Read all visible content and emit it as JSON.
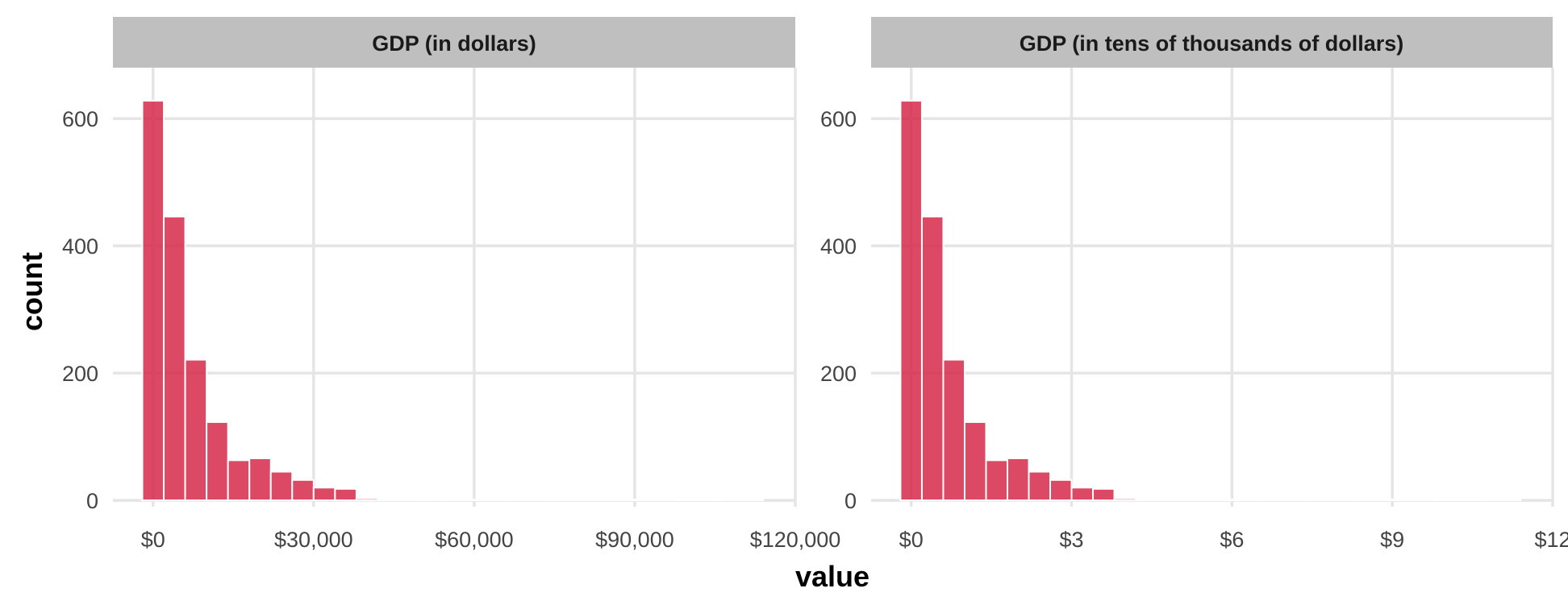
{
  "chart_data": {
    "type": "bar",
    "xlabel": "value",
    "ylabel": "count",
    "grid": true,
    "colors": {
      "bar": "#d6294a",
      "strip": "#bfbfbf",
      "grid": "#e5e5e5"
    },
    "y_ticks": [
      "0",
      "200",
      "400",
      "600"
    ],
    "panels": [
      {
        "title": "GDP (in dollars)",
        "bin_width": 4000,
        "xlim": [
          -7500,
          120000
        ],
        "ylim": [
          -10,
          680
        ],
        "x_ticks": [
          {
            "value": 0,
            "label": "$0"
          },
          {
            "value": 30000,
            "label": "$30,000"
          },
          {
            "value": 60000,
            "label": "$60,000"
          },
          {
            "value": 90000,
            "label": "$90,000"
          },
          {
            "value": 120000,
            "label": "$120,000"
          }
        ],
        "x": [
          0,
          4000,
          8000,
          12000,
          16000,
          20000,
          24000,
          28000,
          32000,
          36000,
          40000,
          44000,
          48000,
          52000,
          56000,
          60000,
          64000,
          68000,
          72000,
          76000,
          80000,
          84000,
          88000,
          92000,
          96000,
          100000,
          104000,
          108000,
          112000
        ],
        "values": [
          628,
          446,
          221,
          123,
          63,
          66,
          45,
          32,
          20,
          18,
          3,
          1,
          1,
          1,
          1,
          1,
          1,
          1,
          1,
          1,
          1,
          1,
          1,
          1,
          1,
          2,
          2,
          1,
          1
        ]
      },
      {
        "title": "GDP (in tens of thousands of dollars)",
        "bin_width": 0.4,
        "xlim": [
          -0.75,
          12
        ],
        "ylim": [
          -10,
          680
        ],
        "x_ticks": [
          {
            "value": 0,
            "label": "$0"
          },
          {
            "value": 3,
            "label": "$3"
          },
          {
            "value": 6,
            "label": "$6"
          },
          {
            "value": 9,
            "label": "$9"
          },
          {
            "value": 12,
            "label": "$12"
          }
        ],
        "x": [
          0,
          0.4,
          0.8,
          1.2,
          1.6,
          2.0,
          2.4,
          2.8,
          3.2,
          3.6,
          4.0,
          4.4,
          4.8,
          5.2,
          5.6,
          6.0,
          6.4,
          6.8,
          7.2,
          7.6,
          8.0,
          8.4,
          8.8,
          9.2,
          9.6,
          10.0,
          10.4,
          10.8,
          11.2
        ],
        "values": [
          628,
          446,
          221,
          123,
          63,
          66,
          45,
          32,
          20,
          18,
          3,
          1,
          1,
          1,
          1,
          1,
          1,
          1,
          1,
          1,
          1,
          1,
          1,
          1,
          1,
          2,
          2,
          1,
          1
        ]
      }
    ]
  }
}
